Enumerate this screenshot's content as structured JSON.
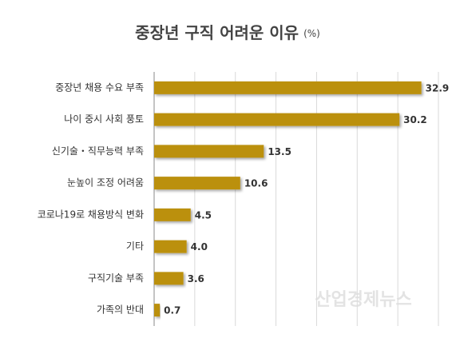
{
  "chart_data": {
    "type": "bar",
    "orientation": "horizontal",
    "title": "중장년 구직 어려운 이유",
    "unit": "(%)",
    "categories": [
      "중장년 채용 수요 부족",
      "나이 중시 사회 풍토",
      "신기술・직무능력 부족",
      "눈높이 조정 어려움",
      "코로나19로 채용방식 변화",
      "기타",
      "구직기술 부족",
      "가족의 반대"
    ],
    "values": [
      32.9,
      30.2,
      13.5,
      10.6,
      4.5,
      4.0,
      3.6,
      0.7
    ],
    "value_labels": [
      "32.9",
      "30.2",
      "13.5",
      "10.6",
      "4.5",
      "4.0",
      "3.6",
      "0.7"
    ],
    "color": "#bb900e",
    "xlim": [
      0,
      35
    ],
    "xticks": [
      0,
      5,
      10,
      15,
      20,
      25,
      30,
      35
    ],
    "grid": true,
    "watermark": "산업경제뉴스"
  }
}
